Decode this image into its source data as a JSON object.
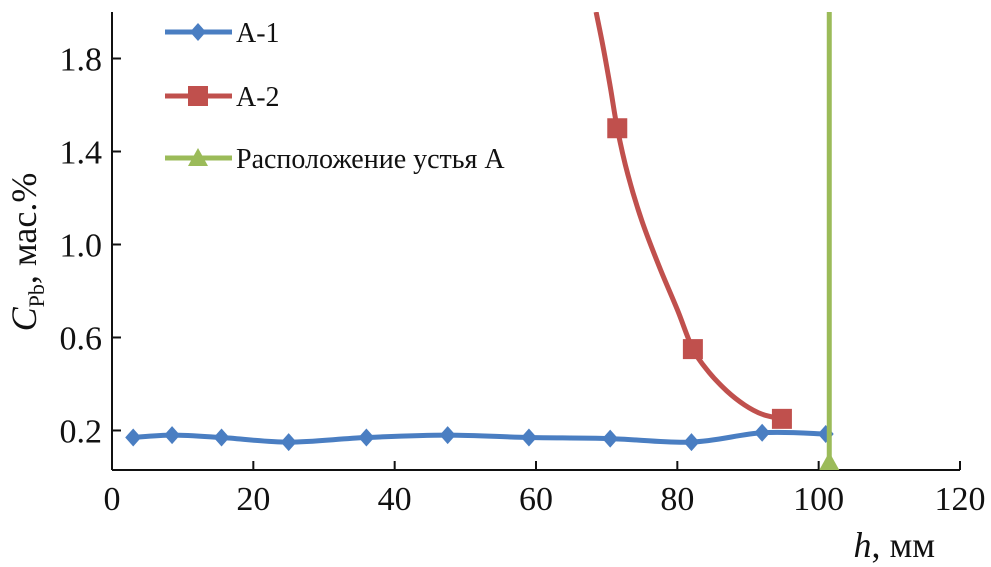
{
  "chart_data": {
    "type": "line",
    "xlabel": "h",
    "xlabel_unit": ", мм",
    "ylabel": "C",
    "ylabel_sub": "Pb",
    "ylabel_unit": ", мас.%",
    "xlim": [
      0,
      120
    ],
    "ylim": [
      0.03,
      2.0
    ],
    "xticks": [
      0,
      20,
      40,
      60,
      80,
      100,
      120
    ],
    "yticks": [
      0.2,
      0.6,
      1.0,
      1.4,
      1.8
    ],
    "ytick_labels": [
      "0.2",
      "0.6",
      "1.0",
      "1.4",
      "1.8"
    ],
    "grid": false,
    "legend_position": "top-left",
    "series": [
      {
        "name": "А-1",
        "color": "#4a7ec2",
        "marker": "diamond",
        "x": [
          3,
          8.5,
          15.5,
          25,
          36,
          47.5,
          59,
          70.5,
          82,
          92,
          101
        ],
        "y": [
          0.17,
          0.18,
          0.17,
          0.15,
          0.17,
          0.18,
          0.17,
          0.165,
          0.15,
          0.19,
          0.185
        ]
      },
      {
        "name": "А-2",
        "color": "#c0504d",
        "marker": "square",
        "curve_x": [
          68.5,
          69.5,
          70.5,
          71.5,
          73,
          75,
          77.5,
          80,
          82.2,
          84.5,
          87,
          89.5,
          92,
          94.8
        ],
        "curve_y": [
          2.0,
          1.85,
          1.68,
          1.5,
          1.3,
          1.1,
          0.9,
          0.72,
          0.55,
          0.45,
          0.37,
          0.31,
          0.27,
          0.25
        ],
        "x": [
          71.5,
          82.2,
          94.8
        ],
        "y": [
          1.5,
          0.55,
          0.25
        ]
      },
      {
        "name": "Расположение устья А",
        "color": "#9bbb59",
        "marker": "triangle",
        "x": [
          101.5,
          101.5
        ],
        "y": [
          0.03,
          2.0
        ]
      }
    ]
  }
}
